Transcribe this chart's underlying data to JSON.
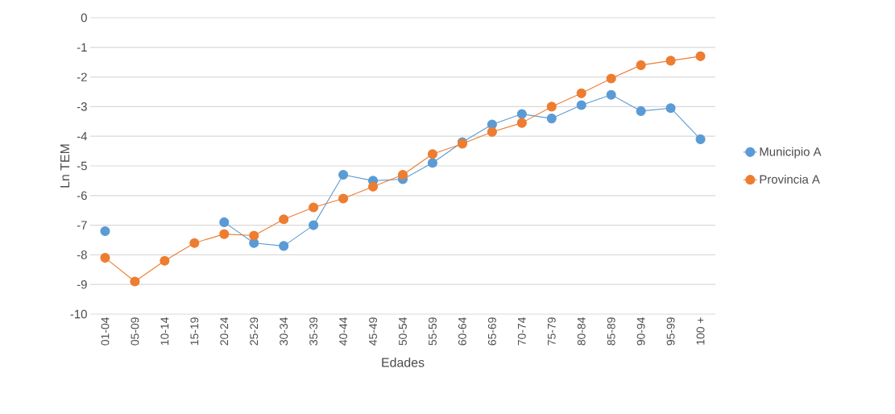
{
  "chart_data": {
    "type": "line",
    "xlabel": "Edades",
    "ylabel": "Ln TEM",
    "categories": [
      "01-04",
      "05-09",
      "10-14",
      "15-19",
      "20-24",
      "25-29",
      "30-34",
      "35-39",
      "40-44",
      "45-49",
      "50-54",
      "55-59",
      "60-64",
      "65-69",
      "70-74",
      "75-79",
      "80-84",
      "85-89",
      "90-94",
      "95-99",
      "100 +"
    ],
    "series": [
      {
        "name": "Municipio A",
        "color": "#5b9bd5",
        "values": [
          -7.2,
          null,
          null,
          null,
          -6.9,
          -7.6,
          -7.7,
          -7.0,
          -5.3,
          -5.5,
          -5.45,
          -4.9,
          -4.2,
          -3.6,
          -3.25,
          -3.4,
          -2.95,
          -2.6,
          -3.15,
          -3.05,
          -4.1
        ]
      },
      {
        "name": "Provincia A",
        "color": "#ed7d31",
        "values": [
          -8.1,
          -8.9,
          -8.2,
          -7.6,
          -7.3,
          -7.35,
          -6.8,
          -6.4,
          -6.1,
          -5.7,
          -5.3,
          -4.6,
          -4.25,
          -3.85,
          -3.55,
          -3.0,
          -2.55,
          -2.05,
          -1.6,
          -1.45,
          -1.3
        ]
      }
    ],
    "ylim": [
      -10,
      0
    ],
    "yticks": [
      -10,
      -9,
      -8,
      -7,
      -6,
      -5,
      -4,
      -3,
      -2,
      -1,
      0
    ],
    "grid": "y",
    "legend": "right",
    "marker": "circle",
    "line_style": "solid"
  }
}
